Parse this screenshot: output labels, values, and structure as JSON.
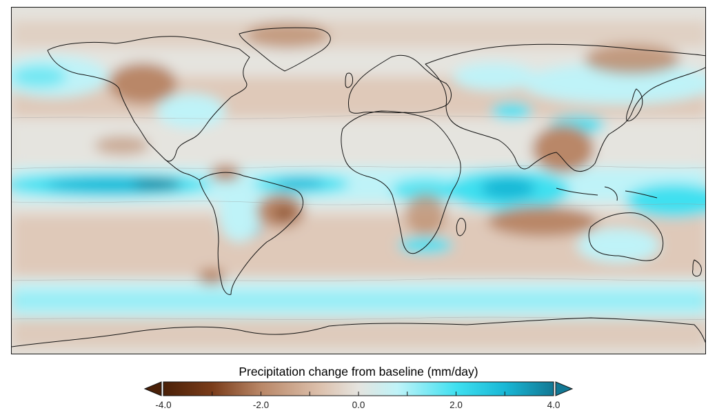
{
  "legend": {
    "title": "Precipitation change from baseline (mm/day)",
    "min": -4.0,
    "max": 4.0,
    "tick_values": [
      -4.0,
      -3.0,
      -2.0,
      -1.0,
      0.0,
      1.0,
      2.0,
      3.0,
      4.0
    ],
    "tick_labels": [
      "-4.0",
      "-2.0",
      "0.0",
      "2.0",
      "4.0"
    ],
    "extend": "both",
    "colors": {
      "dry_extreme": "#4a2008",
      "dry_strong": "#7a3c1a",
      "dry_mid": "#b98767",
      "dry_light": "#dcc0ac",
      "neutral": "#e5e4df",
      "wet_light": "#bff3f8",
      "wet_mid": "#3fe0f0",
      "wet_strong": "#19b8d6",
      "wet_extreme": "#127894"
    }
  },
  "map": {
    "projection": "equirectangular",
    "extent": "global",
    "coastlines": true,
    "contour_lines": true
  }
}
